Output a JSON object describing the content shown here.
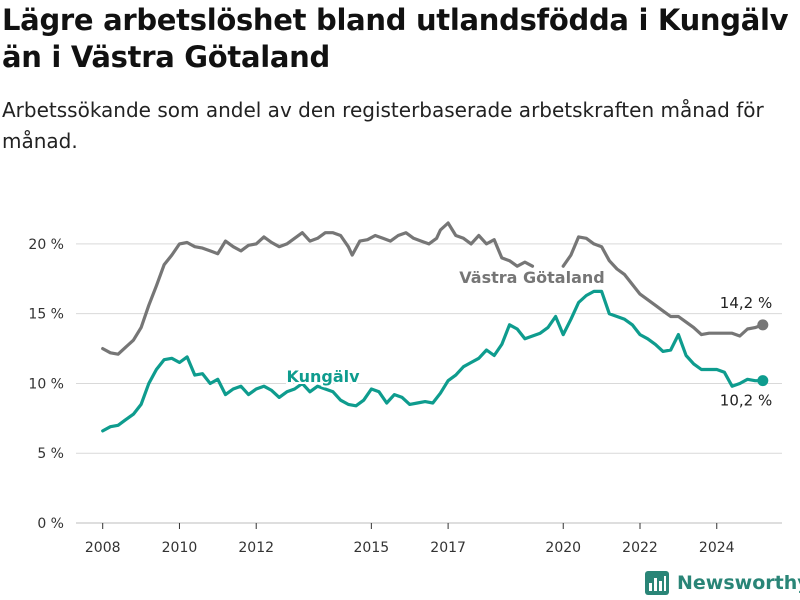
{
  "title": "Lägre arbetslöshet bland utlandsfödda i Kungälv än i Västra Götaland",
  "subtitle": "Arbetssökande som andel av den registerbaserade arbetskraften månad för månad.",
  "brand": {
    "name": "Newsworthy",
    "icon": "bar-chart-icon"
  },
  "colors": {
    "vastra_gotaland": "#767676",
    "kungalv": "#0e9c8e",
    "grid": "#d9d9d9",
    "brand": "#2a8577"
  },
  "chart_data": {
    "type": "line",
    "title": "",
    "xlabel": "",
    "ylabel": "",
    "ylim": [
      0,
      22
    ],
    "yticks": [
      0,
      5,
      10,
      15,
      20
    ],
    "ytick_labels": [
      "0 %",
      "5 %",
      "10 %",
      "15 %",
      "20 %"
    ],
    "xticks": [
      2008,
      2010,
      2012,
      2015,
      2017,
      2020,
      2022,
      2024
    ],
    "xlim": [
      2007.2,
      2025.7
    ],
    "grid": true,
    "legend": "inline labels",
    "series": [
      {
        "name": "Västra Götaland",
        "key": "vastra_gotaland",
        "end_label": "14,2 %",
        "points": [
          [
            2008.0,
            12.5
          ],
          [
            2008.2,
            12.2
          ],
          [
            2008.4,
            12.1
          ],
          [
            2008.6,
            12.6
          ],
          [
            2008.8,
            13.1
          ],
          [
            2009.0,
            14.0
          ],
          [
            2009.2,
            15.6
          ],
          [
            2009.4,
            17.0
          ],
          [
            2009.6,
            18.5
          ],
          [
            2009.8,
            19.2
          ],
          [
            2010.0,
            20.0
          ],
          [
            2010.2,
            20.1
          ],
          [
            2010.4,
            19.8
          ],
          [
            2010.6,
            19.7
          ],
          [
            2010.8,
            19.5
          ],
          [
            2011.0,
            19.3
          ],
          [
            2011.2,
            20.2
          ],
          [
            2011.4,
            19.8
          ],
          [
            2011.6,
            19.5
          ],
          [
            2011.8,
            19.9
          ],
          [
            2012.0,
            20.0
          ],
          [
            2012.2,
            20.5
          ],
          [
            2012.4,
            20.1
          ],
          [
            2012.6,
            19.8
          ],
          [
            2012.8,
            20.0
          ],
          [
            2013.0,
            20.4
          ],
          [
            2013.2,
            20.8
          ],
          [
            2013.4,
            20.2
          ],
          [
            2013.6,
            20.4
          ],
          [
            2013.8,
            20.8
          ],
          [
            2014.0,
            20.8
          ],
          [
            2014.2,
            20.6
          ],
          [
            2014.4,
            19.8
          ],
          [
            2014.5,
            19.2
          ],
          [
            2014.7,
            20.2
          ],
          [
            2014.9,
            20.3
          ],
          [
            2015.1,
            20.6
          ],
          [
            2015.3,
            20.4
          ],
          [
            2015.5,
            20.2
          ],
          [
            2015.7,
            20.6
          ],
          [
            2015.9,
            20.8
          ],
          [
            2016.1,
            20.4
          ],
          [
            2016.3,
            20.2
          ],
          [
            2016.5,
            20.0
          ],
          [
            2016.7,
            20.4
          ],
          [
            2016.8,
            21.0
          ],
          [
            2017.0,
            21.5
          ],
          [
            2017.2,
            20.6
          ],
          [
            2017.4,
            20.4
          ],
          [
            2017.6,
            20.0
          ],
          [
            2017.8,
            20.6
          ],
          [
            2018.0,
            20.0
          ],
          [
            2018.2,
            20.3
          ],
          [
            2018.4,
            19.0
          ],
          [
            2018.6,
            18.8
          ],
          [
            2018.8,
            18.4
          ],
          [
            2019.0,
            18.7
          ],
          [
            2019.2,
            18.4
          ]
        ],
        "points2": [
          [
            2020.0,
            18.4
          ],
          [
            2020.2,
            19.2
          ],
          [
            2020.4,
            20.5
          ],
          [
            2020.6,
            20.4
          ],
          [
            2020.8,
            20.0
          ],
          [
            2021.0,
            19.8
          ],
          [
            2021.2,
            18.8
          ],
          [
            2021.4,
            18.2
          ],
          [
            2021.6,
            17.8
          ],
          [
            2021.8,
            17.1
          ],
          [
            2022.0,
            16.4
          ],
          [
            2022.2,
            16.0
          ],
          [
            2022.4,
            15.6
          ],
          [
            2022.6,
            15.2
          ],
          [
            2022.8,
            14.8
          ],
          [
            2023.0,
            14.8
          ],
          [
            2023.2,
            14.4
          ],
          [
            2023.4,
            14.0
          ],
          [
            2023.6,
            13.5
          ],
          [
            2023.8,
            13.6
          ],
          [
            2024.0,
            13.6
          ],
          [
            2024.2,
            13.6
          ],
          [
            2024.4,
            13.6
          ],
          [
            2024.6,
            13.4
          ],
          [
            2024.8,
            13.9
          ],
          [
            2025.0,
            14.0
          ],
          [
            2025.2,
            14.2
          ]
        ]
      },
      {
        "name": "Kungälv",
        "key": "kungalv",
        "end_label": "10,2 %",
        "points": [
          [
            2008.0,
            6.6
          ],
          [
            2008.2,
            6.9
          ],
          [
            2008.4,
            7.0
          ],
          [
            2008.6,
            7.4
          ],
          [
            2008.8,
            7.8
          ],
          [
            2009.0,
            8.5
          ],
          [
            2009.2,
            10.0
          ],
          [
            2009.4,
            11.0
          ],
          [
            2009.6,
            11.7
          ],
          [
            2009.8,
            11.8
          ],
          [
            2010.0,
            11.5
          ],
          [
            2010.2,
            11.9
          ],
          [
            2010.4,
            10.6
          ],
          [
            2010.6,
            10.7
          ],
          [
            2010.8,
            10.0
          ],
          [
            2011.0,
            10.3
          ],
          [
            2011.2,
            9.2
          ],
          [
            2011.4,
            9.6
          ],
          [
            2011.6,
            9.8
          ],
          [
            2011.8,
            9.2
          ],
          [
            2012.0,
            9.6
          ],
          [
            2012.2,
            9.8
          ],
          [
            2012.4,
            9.5
          ],
          [
            2012.6,
            9.0
          ],
          [
            2012.8,
            9.4
          ],
          [
            2013.0,
            9.6
          ],
          [
            2013.2,
            10.0
          ],
          [
            2013.4,
            9.4
          ],
          [
            2013.6,
            9.8
          ],
          [
            2013.8,
            9.6
          ],
          [
            2014.0,
            9.4
          ],
          [
            2014.2,
            8.8
          ],
          [
            2014.4,
            8.5
          ],
          [
            2014.6,
            8.4
          ],
          [
            2014.8,
            8.8
          ],
          [
            2015.0,
            9.6
          ],
          [
            2015.2,
            9.4
          ],
          [
            2015.4,
            8.6
          ],
          [
            2015.6,
            9.2
          ],
          [
            2015.8,
            9.0
          ],
          [
            2016.0,
            8.5
          ],
          [
            2016.2,
            8.6
          ],
          [
            2016.4,
            8.7
          ],
          [
            2016.6,
            8.6
          ],
          [
            2016.8,
            9.3
          ],
          [
            2017.0,
            10.2
          ],
          [
            2017.2,
            10.6
          ],
          [
            2017.4,
            11.2
          ],
          [
            2017.6,
            11.5
          ],
          [
            2017.8,
            11.8
          ],
          [
            2018.0,
            12.4
          ],
          [
            2018.2,
            12.0
          ],
          [
            2018.4,
            12.8
          ],
          [
            2018.6,
            14.2
          ],
          [
            2018.8,
            13.9
          ],
          [
            2019.0,
            13.2
          ],
          [
            2019.2,
            13.4
          ],
          [
            2019.4,
            13.6
          ],
          [
            2019.6,
            14.0
          ],
          [
            2019.8,
            14.8
          ],
          [
            2020.0,
            13.5
          ],
          [
            2020.2,
            14.6
          ],
          [
            2020.4,
            15.8
          ],
          [
            2020.6,
            16.3
          ],
          [
            2020.8,
            16.6
          ],
          [
            2021.0,
            16.6
          ],
          [
            2021.2,
            15.0
          ],
          [
            2021.4,
            14.8
          ],
          [
            2021.6,
            14.6
          ],
          [
            2021.8,
            14.2
          ],
          [
            2022.0,
            13.5
          ],
          [
            2022.2,
            13.2
          ],
          [
            2022.4,
            12.8
          ],
          [
            2022.6,
            12.3
          ],
          [
            2022.8,
            12.4
          ],
          [
            2023.0,
            13.5
          ],
          [
            2023.2,
            12.0
          ],
          [
            2023.4,
            11.4
          ],
          [
            2023.6,
            11.0
          ],
          [
            2023.8,
            11.0
          ],
          [
            2024.0,
            11.0
          ],
          [
            2024.2,
            10.8
          ],
          [
            2024.4,
            9.8
          ],
          [
            2024.6,
            10.0
          ],
          [
            2024.8,
            10.3
          ],
          [
            2025.0,
            10.2
          ],
          [
            2025.2,
            10.2
          ]
        ]
      }
    ]
  }
}
